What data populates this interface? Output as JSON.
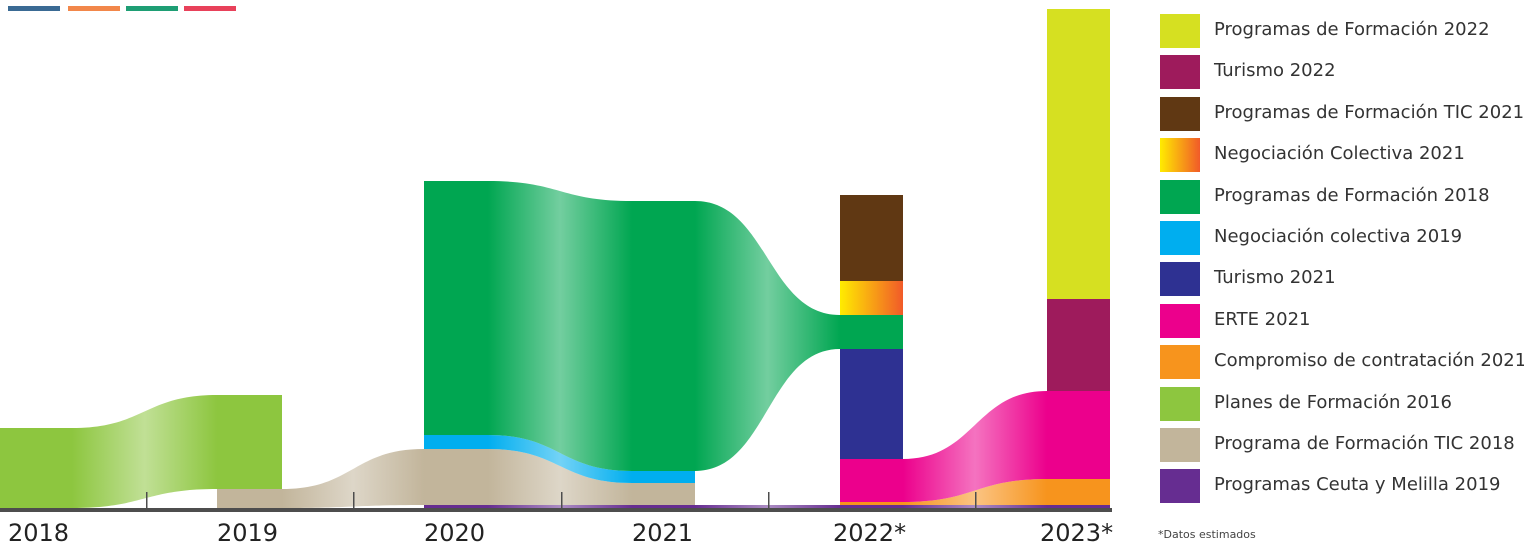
{
  "header": {
    "bar_colors": [
      "#3a6a94",
      "#f2874a",
      "#1e9e74",
      "#e8415a"
    ]
  },
  "chart_data": {
    "type": "area",
    "x": [
      "2018",
      "2019",
      "2020",
      "2021",
      "2022*",
      "2023*"
    ],
    "series": [
      {
        "name": "Programas de Formación 2022",
        "color": "#d6e021",
        "values": [
          0,
          0,
          0,
          0,
          0,
          290
        ]
      },
      {
        "name": "Turismo 2022",
        "color": "#9e1b5c",
        "values": [
          0,
          0,
          0,
          0,
          0,
          92
        ]
      },
      {
        "name": "Programas de Formación TIC 2021",
        "color": "#603813",
        "values": [
          0,
          0,
          0,
          0,
          86,
          0
        ]
      },
      {
        "name": "Negociación Colectiva 2021",
        "color": "#f7941d",
        "gradient": [
          "#ffec00",
          "#f15a29"
        ],
        "values": [
          0,
          0,
          0,
          0,
          34,
          0
        ]
      },
      {
        "name": "Programas de Formación 2018",
        "color": "#00a651",
        "values": [
          0,
          0,
          254,
          270,
          34,
          0
        ]
      },
      {
        "name": "Negociación colectiva 2019",
        "color": "#00aeef",
        "values": [
          0,
          0,
          14,
          12,
          0,
          0
        ]
      },
      {
        "name": "Turismo 2021",
        "color": "#2e3192",
        "values": [
          0,
          0,
          0,
          0,
          110,
          0
        ]
      },
      {
        "name": "ERTE 2021",
        "color": "#ec008c",
        "values": [
          0,
          0,
          0,
          0,
          43,
          88
        ]
      },
      {
        "name": "Compromiso de contratación 2021",
        "color": "#f7941d",
        "values": [
          0,
          0,
          0,
          0,
          3,
          26
        ]
      },
      {
        "name": "Planes de Formación 2016",
        "color": "#8dc63f",
        "values": [
          80,
          94,
          0,
          0,
          0,
          0
        ]
      },
      {
        "name": "Programa de Formación TIC 2018",
        "color": "#c2b59b",
        "values": [
          0,
          19,
          56,
          22,
          0,
          0
        ]
      },
      {
        "name": "Programas Ceuta y Melilla 2019",
        "color": "#662d91",
        "values": [
          0,
          0,
          3,
          3,
          3,
          3
        ]
      }
    ],
    "legend_position": "right",
    "grid": false,
    "note": "*Datos estimados"
  }
}
